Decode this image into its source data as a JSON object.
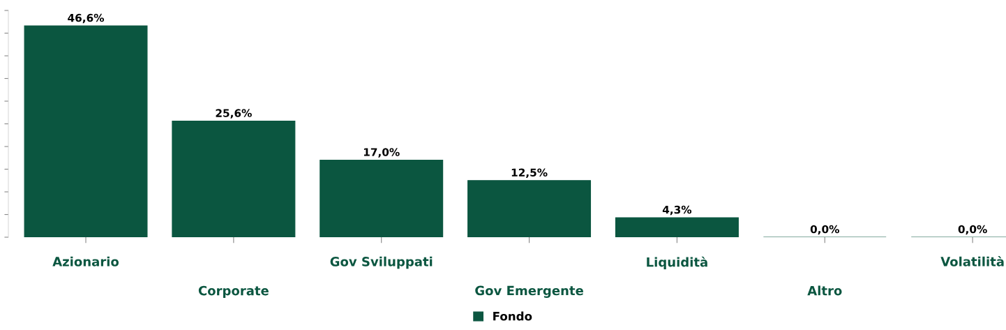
{
  "chart_data": {
    "type": "bar",
    "categories": [
      "Azionario",
      "Corporate",
      "Gov Sviluppati",
      "Gov Emergente",
      "Liquidità",
      "Altro",
      "Volatilità"
    ],
    "series": [
      {
        "name": "Fondo",
        "color": "#0b5640",
        "values": [
          46.6,
          25.6,
          17.0,
          12.5,
          4.3,
          0.0,
          0.0
        ],
        "value_labels": [
          "46,6%",
          "25,6%",
          "17,0%",
          "12,5%",
          "4,3%",
          "0,0%",
          "0,0%"
        ]
      }
    ],
    "ylim": [
      0,
      50
    ],
    "yticks": [
      {
        "value": 0,
        "label": null
      },
      {
        "value": 5,
        "label": null
      },
      {
        "value": 10,
        "label": null
      },
      {
        "value": 15,
        "label": null
      },
      {
        "value": 20,
        "label": null
      },
      {
        "value": 25,
        "label": null
      },
      {
        "value": 30,
        "label": null
      },
      {
        "value": 35,
        "label": null
      },
      {
        "value": 40,
        "label": null
      },
      {
        "value": 45,
        "label": null
      },
      {
        "value": 50,
        "label": null
      }
    ],
    "tick_labels": "x",
    "grid": false,
    "legend": "bottom"
  }
}
